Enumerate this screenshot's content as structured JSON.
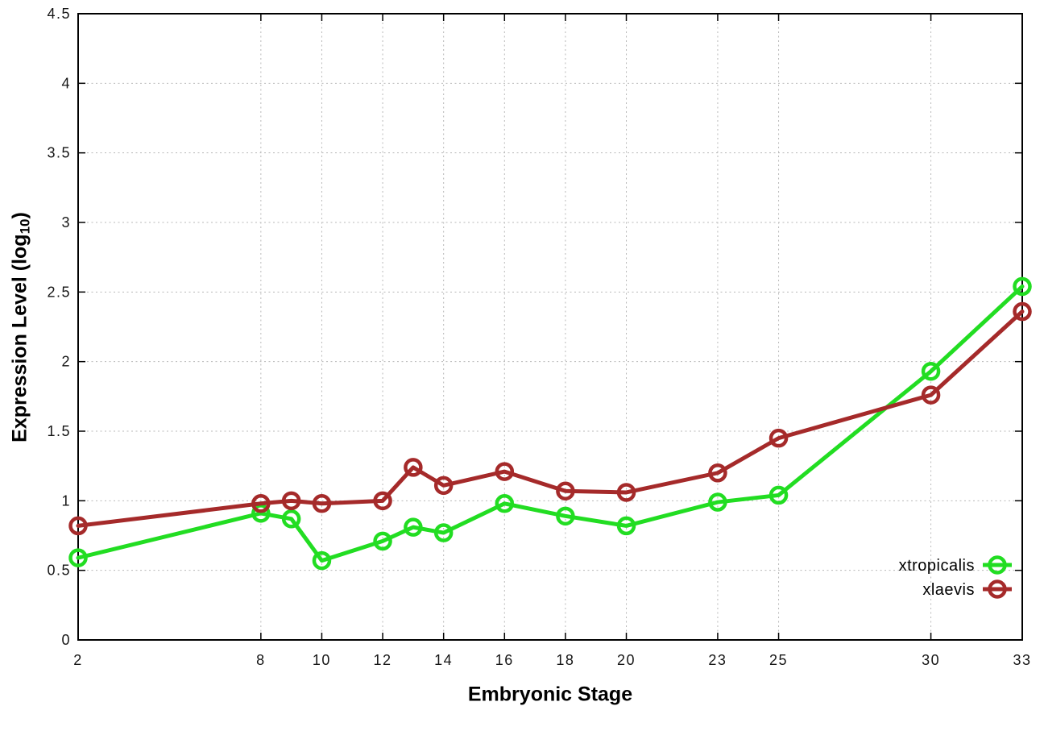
{
  "figure": {
    "background": "#ffffff",
    "xlabel": "Embryonic Stage",
    "ylabel_prefix": "Expression Level (log",
    "ylabel_sub": "10",
    "ylabel_suffix": ")"
  },
  "chart_data": {
    "type": "line",
    "title": "",
    "xlabel": "Embryonic Stage",
    "ylabel": "Expression Level (log10)",
    "x": [
      2,
      8,
      9,
      10,
      12,
      13,
      14,
      16,
      18,
      20,
      23,
      25,
      30,
      33
    ],
    "series": [
      {
        "name": "xtropicalis",
        "color": "#22dd22",
        "values": [
          0.59,
          0.91,
          0.87,
          0.57,
          0.71,
          0.81,
          0.77,
          0.98,
          0.89,
          0.82,
          0.99,
          1.04,
          1.93,
          2.54
        ]
      },
      {
        "name": "xlaevis",
        "color": "#a52a2a",
        "values": [
          0.82,
          0.98,
          1.0,
          0.98,
          1.0,
          1.24,
          1.11,
          1.21,
          1.07,
          1.06,
          1.2,
          1.45,
          1.76,
          2.36
        ]
      }
    ],
    "xlim": [
      2,
      33
    ],
    "ylim": [
      0,
      4.5
    ],
    "x_ticks": [
      2,
      8,
      10,
      12,
      14,
      16,
      18,
      20,
      23,
      25,
      30,
      33
    ],
    "y_ticks": [
      0,
      0.5,
      1,
      1.5,
      2,
      2.5,
      3,
      3.5,
      4,
      4.5
    ],
    "grid": true,
    "grid_color": "#b8b8b8",
    "border_color": "#000000",
    "legend_position": "bottom-right",
    "marker": "open-circle"
  }
}
